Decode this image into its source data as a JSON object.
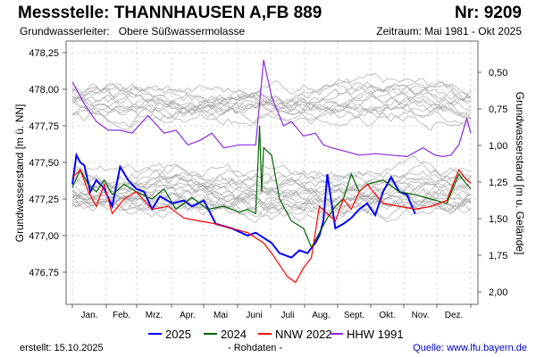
{
  "header": {
    "title": "Messstelle: THANNHAUSEN A,FB 889",
    "nr": "Nr: 9209",
    "aquifer_label": "Grundwasserleiter:",
    "aquifer_value": "Obere Süßwassermolasse",
    "period": "Zeitraum: Mai 1981 - Okt 2025"
  },
  "footer": {
    "created": "erstellt:  15.10.2025",
    "raw": "- Rohdaten -",
    "source": "Quelle: www.lfu.bayern.de"
  },
  "chart_data": {
    "type": "line",
    "title": "Messstelle: THANNHAUSEN A,FB 889",
    "ylabel": "Grundwasserstand [m ü. NN]",
    "y2label": "Grundwasserstand [m u. Gelände]",
    "xlabel": "",
    "ylim": [
      476.6,
      478.3
    ],
    "y2lim_note": "0,50 at 477,96; 2,00 at 476,46 (ground offset 478,46)",
    "ground_level": 478.46,
    "yticks": [
      "478,25",
      "478,00",
      "477,75",
      "477,50",
      "477,25",
      "477,00",
      "476,75"
    ],
    "ytick_values": [
      478.25,
      478.0,
      477.75,
      477.5,
      477.25,
      477.0,
      476.75
    ],
    "y2ticks": [
      "0,50",
      "0,75",
      "1,00",
      "1,25",
      "1,50",
      "1,75",
      "2,00"
    ],
    "y2tick_values": [
      0.5,
      0.75,
      1.0,
      1.25,
      1.5,
      1.75,
      2.0
    ],
    "categories": [
      "Jan.",
      "Feb.",
      "Mrz.",
      "Apr.",
      "Mai",
      "Juni",
      "Juli",
      "Aug.",
      "Sept.",
      "Okt.",
      "Nov.",
      "Dez."
    ],
    "grid": true,
    "legend_position": "bottom",
    "colors": {
      "2025": "#0000ff",
      "2024": "#006400",
      "NNW 2022": "#ff0000",
      "HHW 1991": "#8a2be2",
      "other": "#a0a0a0"
    },
    "series": [
      {
        "name": "2025",
        "color": "#0000ff",
        "x": [
          0,
          0.01,
          0.02,
          0.03,
          0.045,
          0.06,
          0.08,
          0.1,
          0.12,
          0.14,
          0.16,
          0.18,
          0.2,
          0.22,
          0.25,
          0.28,
          0.3,
          0.33,
          0.36,
          0.4,
          0.44,
          0.46,
          0.5,
          0.52,
          0.55,
          0.57,
          0.59,
          0.61,
          0.62,
          0.63,
          0.64,
          0.66,
          0.68,
          0.7,
          0.72,
          0.74,
          0.76,
          0.78,
          0.8,
          0.82,
          0.84,
          0.86
        ],
        "y": [
          477.35,
          477.55,
          477.5,
          477.48,
          477.3,
          477.38,
          477.32,
          477.2,
          477.47,
          477.38,
          477.32,
          477.3,
          477.18,
          477.27,
          477.22,
          477.24,
          477.2,
          477.24,
          477.08,
          477.05,
          477.0,
          477.02,
          476.95,
          476.88,
          476.85,
          476.9,
          476.88,
          476.95,
          477.0,
          477.1,
          477.42,
          477.05,
          477.08,
          477.12,
          477.18,
          477.22,
          477.14,
          477.3,
          477.4,
          477.3,
          477.28,
          477.15
        ]
      },
      {
        "name": "2024",
        "color": "#006400",
        "x": [
          0,
          0.02,
          0.04,
          0.06,
          0.08,
          0.1,
          0.13,
          0.16,
          0.2,
          0.23,
          0.26,
          0.3,
          0.34,
          0.38,
          0.42,
          0.44,
          0.46,
          0.47,
          0.475,
          0.48,
          0.5,
          0.52,
          0.55,
          0.58,
          0.6,
          0.62,
          0.64,
          0.66,
          0.68,
          0.7,
          0.72,
          0.74,
          0.78,
          0.82,
          0.86,
          0.9,
          0.94,
          0.97,
          0.99,
          1.0
        ],
        "y": [
          477.33,
          477.45,
          477.35,
          477.3,
          477.38,
          477.28,
          477.35,
          477.3,
          477.25,
          477.32,
          477.18,
          477.26,
          477.18,
          477.2,
          477.16,
          477.18,
          477.15,
          477.75,
          477.3,
          477.6,
          477.55,
          477.25,
          477.1,
          477.05,
          476.92,
          477.02,
          477.12,
          477.2,
          477.25,
          477.42,
          477.3,
          477.35,
          477.38,
          477.3,
          477.28,
          477.25,
          477.22,
          477.42,
          477.35,
          477.32
        ]
      },
      {
        "name": "NNW 2022",
        "color": "#ff0000",
        "x": [
          0,
          0.02,
          0.04,
          0.06,
          0.08,
          0.1,
          0.13,
          0.16,
          0.2,
          0.24,
          0.28,
          0.32,
          0.36,
          0.4,
          0.44,
          0.48,
          0.5,
          0.52,
          0.54,
          0.56,
          0.58,
          0.6,
          0.62,
          0.64,
          0.66,
          0.68,
          0.7,
          0.72,
          0.74,
          0.78,
          0.82,
          0.86,
          0.9,
          0.94,
          0.97,
          0.99,
          1.0
        ],
        "y": [
          477.4,
          477.45,
          477.3,
          477.2,
          477.35,
          477.15,
          477.25,
          477.3,
          477.18,
          477.2,
          477.12,
          477.1,
          477.08,
          477.05,
          477.02,
          476.95,
          476.88,
          476.8,
          476.72,
          476.68,
          476.78,
          476.85,
          477.2,
          477.15,
          477.1,
          477.25,
          477.18,
          477.3,
          477.35,
          477.22,
          477.2,
          477.18,
          477.2,
          477.24,
          477.45,
          477.38,
          477.36
        ]
      },
      {
        "name": "HHW 1991",
        "color": "#8a2be2",
        "x": [
          0,
          0.03,
          0.06,
          0.09,
          0.12,
          0.15,
          0.19,
          0.23,
          0.26,
          0.29,
          0.32,
          0.35,
          0.38,
          0.42,
          0.44,
          0.46,
          0.48,
          0.5,
          0.53,
          0.55,
          0.58,
          0.61,
          0.63,
          0.65,
          0.68,
          0.72,
          0.76,
          0.8,
          0.84,
          0.88,
          0.91,
          0.93,
          0.95,
          0.97,
          0.99,
          1.0
        ],
        "y": [
          478.05,
          477.9,
          477.78,
          477.72,
          477.72,
          477.7,
          477.82,
          477.7,
          477.72,
          477.62,
          477.65,
          477.7,
          477.6,
          477.62,
          477.62,
          477.62,
          478.2,
          477.95,
          477.75,
          477.78,
          477.68,
          477.7,
          477.62,
          477.6,
          477.58,
          477.55,
          477.56,
          477.55,
          477.54,
          477.6,
          477.55,
          477.54,
          477.55,
          477.62,
          477.8,
          477.7
        ]
      }
    ]
  },
  "legend": [
    {
      "label": "2025",
      "color": "#0000ff"
    },
    {
      "label": "2024",
      "color": "#006400"
    },
    {
      "label": "NNW 2022",
      "color": "#ff0000"
    },
    {
      "label": "HHW 1991",
      "color": "#8a2be2"
    }
  ]
}
